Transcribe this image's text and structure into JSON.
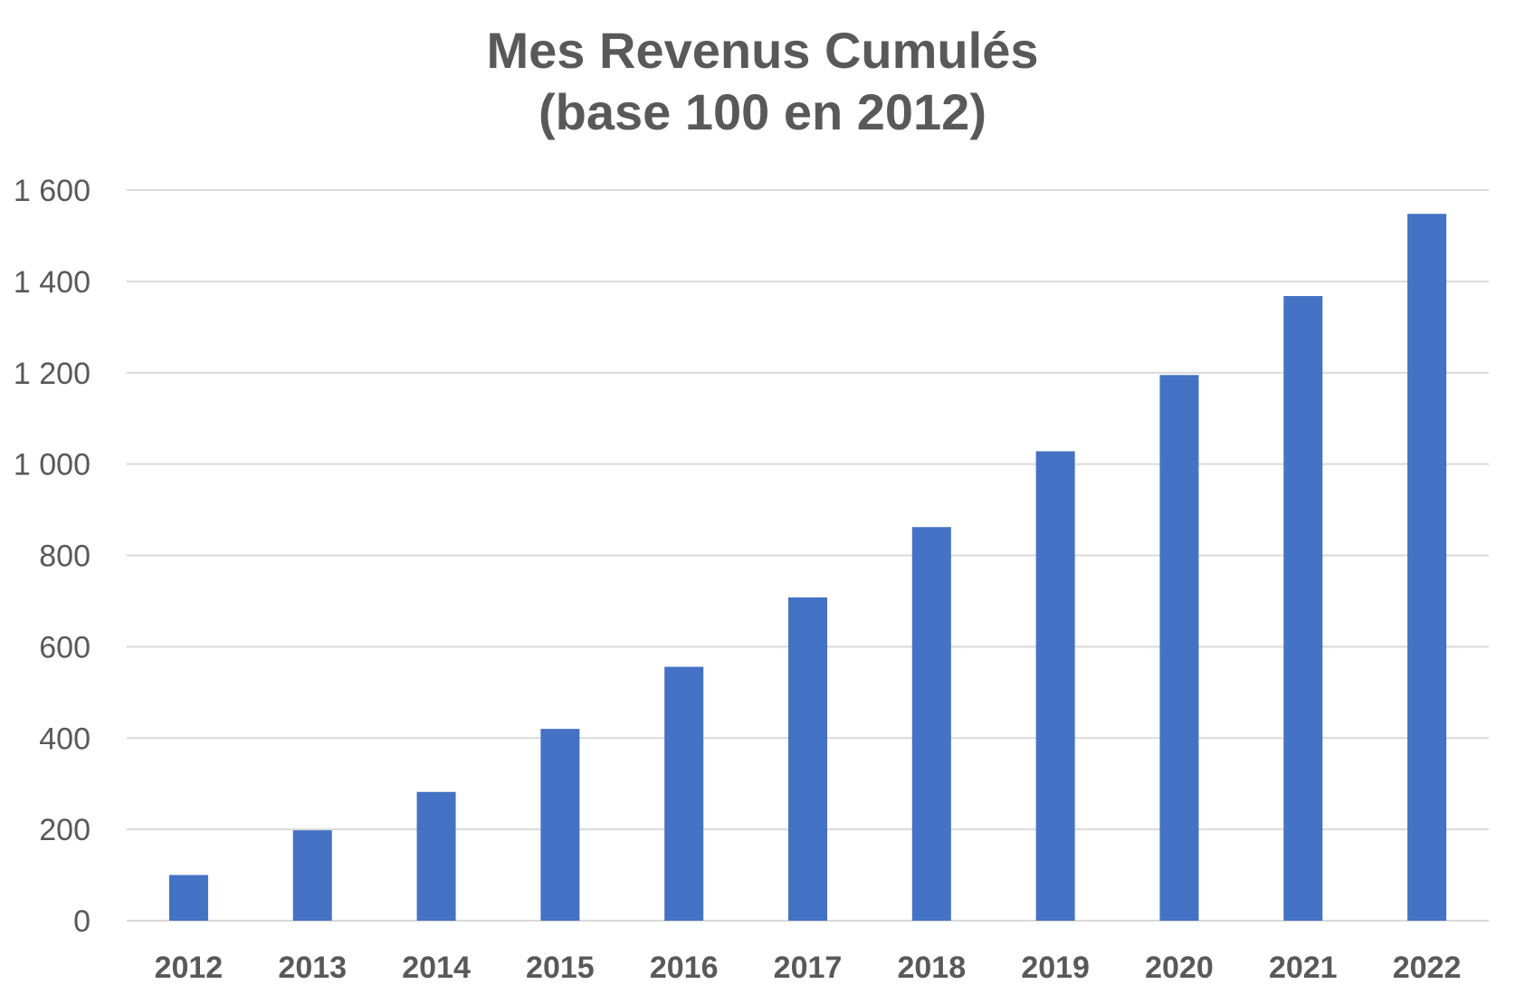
{
  "chart_data": {
    "type": "bar",
    "title": "Mes Revenus Cumulés",
    "subtitle": "(base 100 en 2012)",
    "xlabel": "",
    "ylabel": "",
    "categories": [
      "2012",
      "2013",
      "2014",
      "2015",
      "2016",
      "2017",
      "2018",
      "2019",
      "2020",
      "2021",
      "2022"
    ],
    "values": [
      100,
      198,
      282,
      420,
      556,
      708,
      862,
      1028,
      1195,
      1368,
      1548
    ],
    "ylim": [
      0,
      1600
    ],
    "yticks": [
      0,
      200,
      400,
      600,
      800,
      1000,
      1200,
      1400,
      1600
    ],
    "ytick_labels": [
      "0",
      "200",
      "400",
      "600",
      "800",
      "1 000",
      "1 200",
      "1 400",
      "1 600"
    ],
    "grid": true,
    "legend": "none",
    "colors": {
      "bar": "#4472C4",
      "grid": "#D9D9D9",
      "text": "#595959"
    }
  }
}
